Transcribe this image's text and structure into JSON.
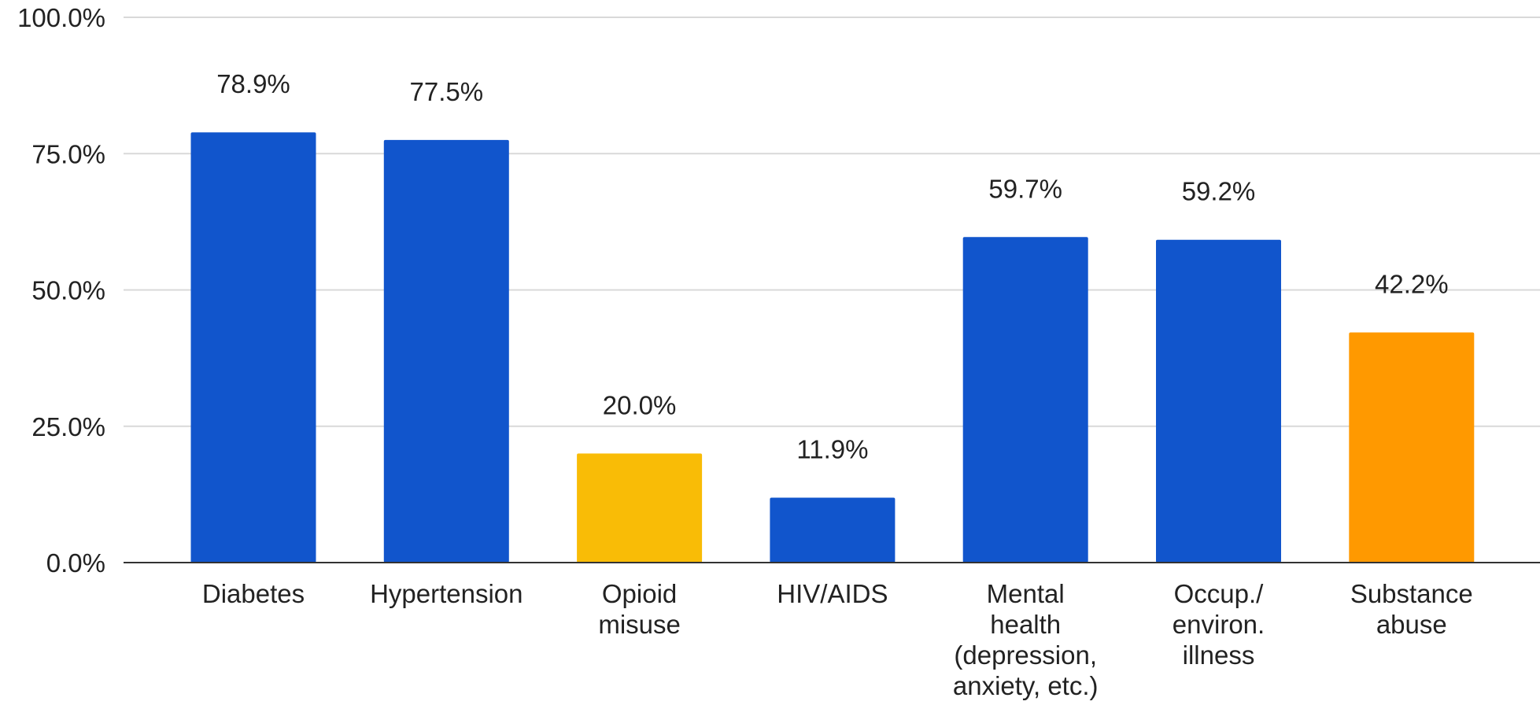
{
  "chart_data": {
    "type": "bar",
    "title": "",
    "xlabel": "",
    "ylabel": "",
    "ylim": [
      0,
      100
    ],
    "yticks": [
      "0.0%",
      "25.0%",
      "50.0%",
      "75.0%",
      "100.0%"
    ],
    "grid": true,
    "categories": [
      [
        "Diabetes"
      ],
      [
        "Hypertension"
      ],
      [
        "Opioid",
        "misuse"
      ],
      [
        "HIV/AIDS"
      ],
      [
        "Mental",
        "health",
        "(depression,",
        "anxiety, etc.)"
      ],
      [
        "Occup./",
        "environ.",
        "illness"
      ],
      [
        "Substance",
        "abuse"
      ]
    ],
    "values": [
      78.9,
      77.5,
      20.0,
      11.9,
      59.7,
      59.2,
      42.2
    ],
    "value_labels": [
      "78.9%",
      "77.5%",
      "20.0%",
      "11.9%",
      "59.7%",
      "59.2%",
      "42.2%"
    ],
    "colors": [
      "#1155CC",
      "#1155CC",
      "#F9BC06",
      "#1155CC",
      "#1155CC",
      "#1155CC",
      "#FF9900"
    ]
  }
}
